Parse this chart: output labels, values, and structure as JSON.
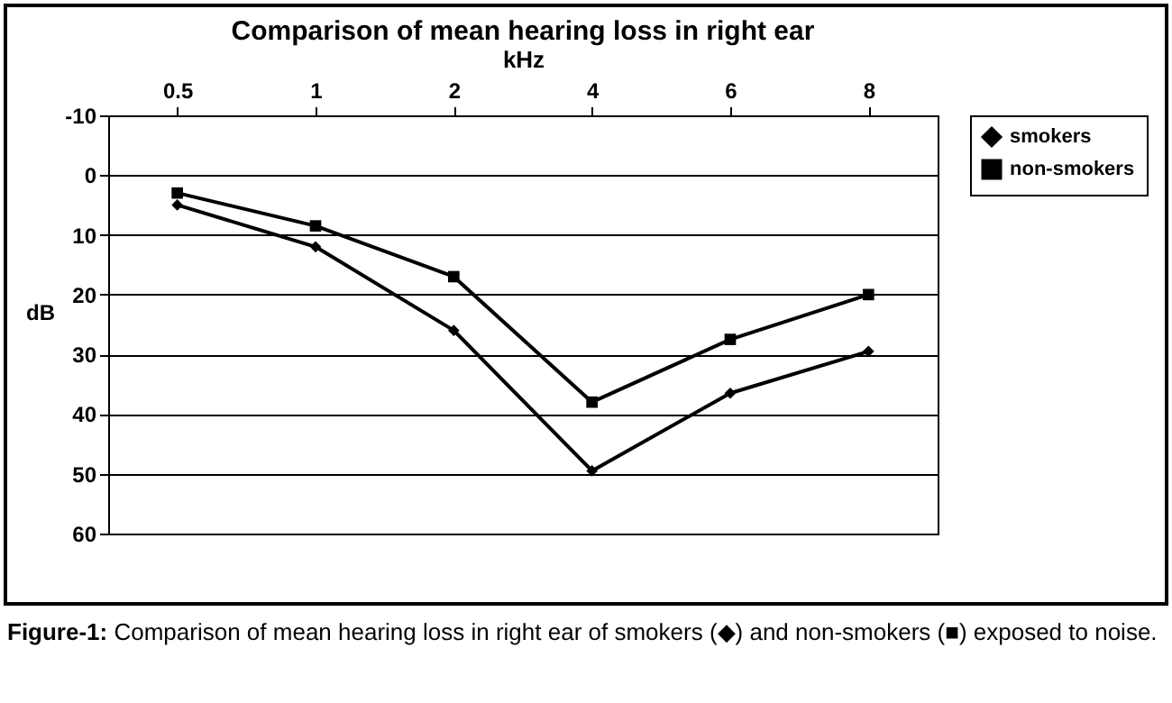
{
  "chart_data": {
    "type": "line",
    "title": "Comparison of mean hearing loss in right ear",
    "xlabel": "kHz",
    "ylabel": "dB",
    "categories": [
      "0.5",
      "1",
      "2",
      "4",
      "6",
      "8"
    ],
    "series": [
      {
        "name": "smokers",
        "color": "#000000",
        "marker": "diamond",
        "values": [
          5,
          12,
          26,
          49.5,
          36.5,
          29.5
        ]
      },
      {
        "name": "non-smokers",
        "color": "#000000",
        "marker": "square",
        "values": [
          3,
          8.5,
          17,
          38,
          27.5,
          20
        ]
      }
    ],
    "ylim": [
      60,
      -10
    ],
    "yticks": [
      -10,
      0,
      10,
      20,
      30,
      40,
      50,
      60
    ],
    "grid": "y",
    "legend": "right",
    "annotations": [
      "Figure-1: Comparison of mean hearing loss in right ear of smokers (◆) and non-smokers (■) exposed to noise."
    ]
  }
}
